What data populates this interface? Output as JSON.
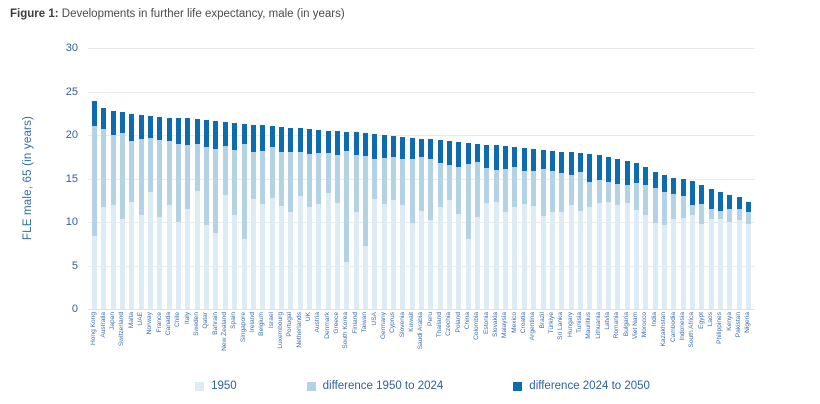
{
  "figure": {
    "label": "Figure 1:",
    "title": "Developments in further life expectancy, male (in years)"
  },
  "colors": {
    "bar_1950": "#dcebf4",
    "bar_diff_1950_2024": "#b3d3e5",
    "bar_diff_2024_2050": "#0e6cae",
    "axis_text_blue": "#2e5f9e",
    "country_label_blue": "#3f6fae",
    "title_gray": "#3c3c3b",
    "gridline": "#ebebeb"
  },
  "chart_data": {
    "type": "bar",
    "stacked": true,
    "title": "Figure 1: Developments in further life expectancy, male (in years)",
    "xlabel": "",
    "ylabel": "FLE  male, 65 (in years)",
    "ylim": [
      0,
      30
    ],
    "yticks": [
      0,
      5,
      10,
      15,
      20,
      25,
      30
    ],
    "grid": true,
    "legend_position": "bottom",
    "legend": [
      {
        "label": "1950",
        "color": "#dcebf4"
      },
      {
        "label": "difference 1950 to 2024",
        "color": "#b3d3e5"
      },
      {
        "label": "difference 2024 to 2050",
        "color": "#0e6cae"
      }
    ],
    "categories": [
      "Hong Kong",
      "Australia",
      "Japan",
      "Switzerland",
      "Malta",
      "UAE",
      "Norway",
      "France",
      "Canada",
      "Chile",
      "Italy",
      "Sweden",
      "Qatar",
      "Bahrain",
      "New Zealand",
      "Spain",
      "Singapore",
      "Ireland",
      "Belgium",
      "Israel",
      "Luxembourg",
      "Portugal",
      "Netherlands",
      "UK",
      "Austria",
      "Denmark",
      "Greece",
      "South Korea",
      "Finland",
      "Taiwan",
      "USA",
      "Germany",
      "Cyprus",
      "Slovenia",
      "Kuwait",
      "Saudi Arabia",
      "Peru",
      "Thailand",
      "Czechia",
      "Poland",
      "China",
      "Colombia",
      "Estonia",
      "Slovakia",
      "Malaysia",
      "Mexico",
      "Croatia",
      "Argentina",
      "Brazil",
      "Türkiye",
      "Sri Lanka",
      "Hungary",
      "Tunisia",
      "Mauritius",
      "Lithuania",
      "Latvia",
      "Romania",
      "Bulgaria",
      "Viet Nam",
      "Morocco",
      "India",
      "Kazakhstan",
      "Cambodia",
      "Indonesia",
      "South Africa",
      "Egypt",
      "Laos",
      "Philippines",
      "Kenya",
      "Pakistan",
      "Nigeria"
    ],
    "series": [
      {
        "name": "FLE 1950",
        "values": [
          8.4,
          11.7,
          12.0,
          10.4,
          12.3,
          10.8,
          13.4,
          10.6,
          11.9,
          10.0,
          11.5,
          13.6,
          9.6,
          8.7,
          13.1,
          10.8,
          8.1,
          12.7,
          12.1,
          12.8,
          11.8,
          11.1,
          13.0,
          11.7,
          12.1,
          13.3,
          12.2,
          5.4,
          11.2,
          7.3,
          12.7,
          12.1,
          12.5,
          12.0,
          9.9,
          11.3,
          10.2,
          11.7,
          12.5,
          10.9,
          8.1,
          10.6,
          12.2,
          12.3,
          11.2,
          11.7,
          12.1,
          11.8,
          10.7,
          11.1,
          11.2,
          12.0,
          11.3,
          11.7,
          12.2,
          12.3,
          12.0,
          12.2,
          11.4,
          10.8,
          9.9,
          9.6,
          10.3,
          10.5,
          10.8,
          9.8,
          10.4,
          10.4,
          10.0,
          10.2,
          9.8
        ]
      },
      {
        "name": "FLE 2024",
        "values": [
          21.0,
          20.7,
          20.0,
          20.2,
          19.3,
          19.6,
          19.6,
          19.4,
          19.3,
          19.0,
          18.9,
          19.0,
          18.6,
          18.4,
          18.7,
          18.3,
          19.0,
          18.0,
          18.2,
          18.6,
          18.1,
          18.0,
          18.0,
          17.8,
          17.9,
          17.9,
          17.7,
          18.2,
          17.7,
          17.6,
          17.2,
          17.4,
          17.5,
          17.3,
          17.3,
          17.5,
          17.2,
          16.8,
          16.6,
          16.3,
          16.7,
          16.9,
          16.2,
          16.0,
          16.1,
          16.3,
          15.9,
          15.9,
          16.1,
          15.9,
          15.6,
          15.4,
          15.7,
          14.6,
          14.8,
          14.6,
          14.4,
          14.2,
          14.5,
          14.3,
          13.9,
          13.4,
          13.2,
          13.0,
          11.9,
          12.1,
          11.5,
          11.3,
          11.5,
          11.5,
          11.1
        ]
      },
      {
        "name": "FLE 2050",
        "values": [
          23.9,
          23.1,
          22.8,
          22.6,
          22.4,
          22.3,
          22.2,
          22.1,
          22.0,
          21.9,
          21.9,
          21.8,
          21.7,
          21.6,
          21.5,
          21.4,
          21.3,
          21.2,
          21.1,
          21.0,
          20.9,
          20.8,
          20.8,
          20.7,
          20.6,
          20.5,
          20.5,
          20.4,
          20.3,
          20.2,
          20.1,
          20.0,
          19.9,
          19.8,
          19.7,
          19.6,
          19.5,
          19.4,
          19.3,
          19.2,
          19.1,
          19.0,
          18.9,
          18.8,
          18.7,
          18.6,
          18.5,
          18.4,
          18.3,
          18.2,
          18.1,
          18.0,
          17.9,
          17.8,
          17.7,
          17.5,
          17.3,
          17.0,
          16.8,
          16.3,
          15.8,
          15.4,
          15.1,
          14.9,
          14.7,
          14.2,
          13.8,
          13.4,
          13.1,
          12.9,
          12.3
        ]
      }
    ]
  },
  "axis": {
    "ylabel": "FLE  male, 65 (in years)"
  }
}
